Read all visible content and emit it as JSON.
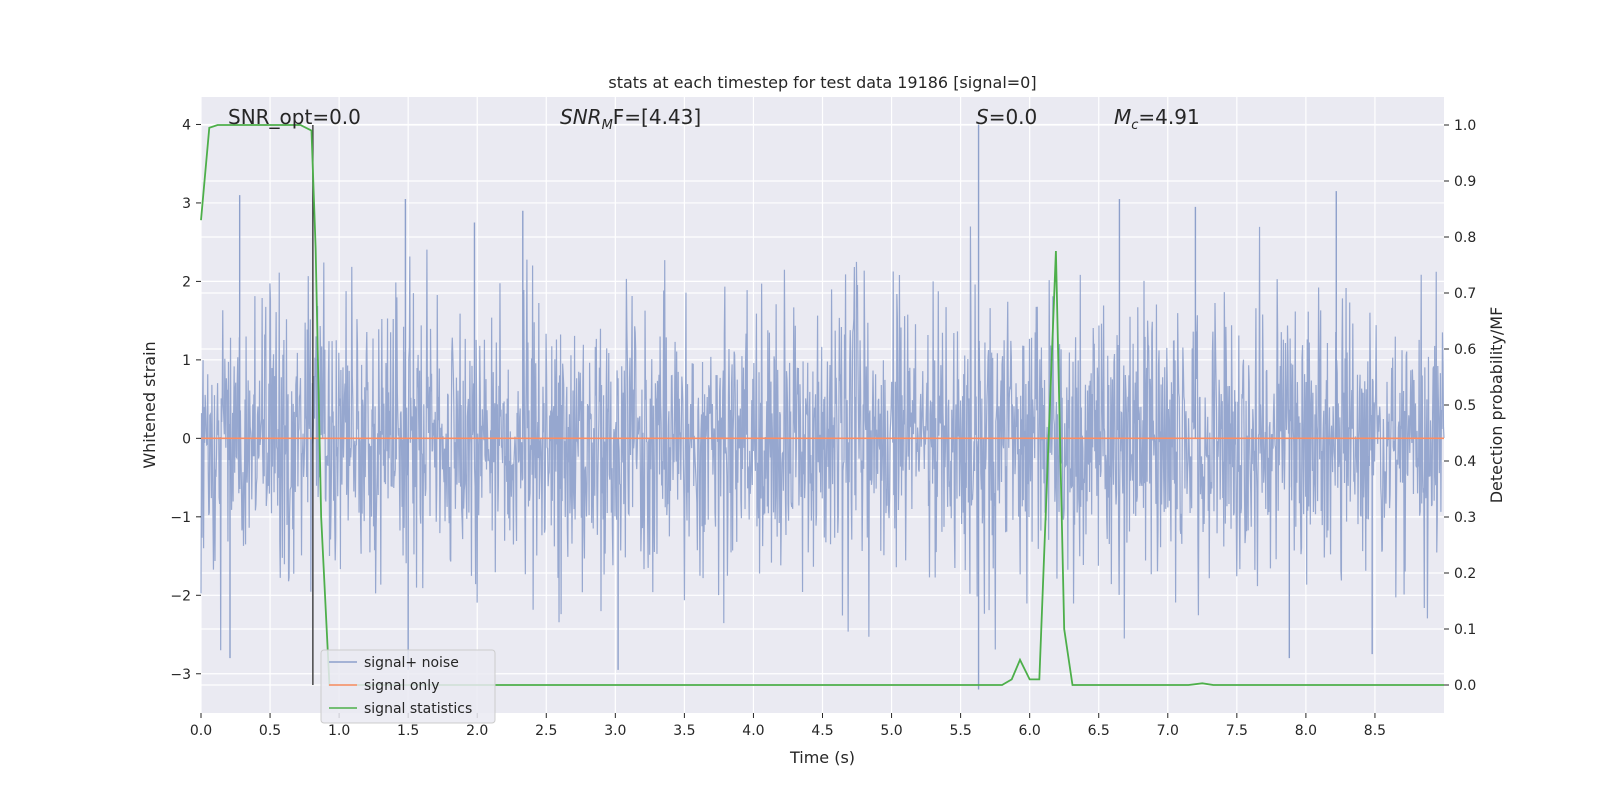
{
  "chart_data": {
    "type": "line",
    "title": "stats at each timestep for test data 19186 [signal=0]",
    "xlabel": "Time (s)",
    "ylabel_left": "Whitened strain",
    "ylabel_right": "Detection probability/MF",
    "xlim": [
      0.0,
      9.0
    ],
    "ylim_left": [
      -3.5,
      4.35
    ],
    "ylim_right": [
      -0.05,
      1.05
    ],
    "xticks": [
      "0.0",
      "0.5",
      "1.0",
      "1.5",
      "2.0",
      "2.5",
      "3.0",
      "3.5",
      "4.0",
      "4.5",
      "5.0",
      "5.5",
      "6.0",
      "6.5",
      "7.0",
      "7.5",
      "8.0",
      "8.5"
    ],
    "yticks_left": [
      "4",
      "3",
      "2",
      "1",
      "0",
      "−1",
      "−2",
      "−3"
    ],
    "yticks_right": [
      "1.0",
      "0.9",
      "0.8",
      "0.7",
      "0.6",
      "0.5",
      "0.4",
      "0.3",
      "0.2",
      "0.1",
      "0.0"
    ],
    "grid": true,
    "legend_position": "lower-left",
    "annotations": {
      "snr_opt": "SNR_opt=0.0",
      "snr_mf_base": "SNR",
      "snr_mf_sub": "M",
      "snr_mf_rest": "F=[4.43]",
      "s_base": "S",
      "s_rest": "=0.0",
      "mc_base": "M",
      "mc_sub": "c",
      "mc_rest": "=4.91"
    },
    "vline_x": 0.81,
    "series": [
      {
        "name": "signal+ noise",
        "axis": "left",
        "color": "#8da0cb",
        "description_level": "noise envelope about ±2 with spikes",
        "spikes": [
          [
            0.28,
            3.1
          ],
          [
            1.48,
            3.05
          ],
          [
            1.98,
            2.75
          ],
          [
            2.33,
            2.9
          ],
          [
            5.63,
            4.0
          ],
          [
            5.63,
            -3.2
          ],
          [
            6.65,
            3.05
          ],
          [
            7.2,
            2.95
          ],
          [
            8.22,
            3.15
          ],
          [
            1.5,
            -2.95
          ],
          [
            3.02,
            -2.95
          ],
          [
            7.88,
            -2.8
          ],
          [
            8.48,
            -2.75
          ],
          [
            0.21,
            -2.8
          ]
        ]
      },
      {
        "name": "signal only",
        "axis": "left",
        "color": "#fc8d62",
        "x": [
          0.0,
          9.0
        ],
        "y": [
          0.0,
          0.0
        ]
      },
      {
        "name": "signal statistics",
        "axis": "right",
        "color": "#4daf4a",
        "x": [
          0.0,
          0.06,
          0.12,
          0.5,
          0.72,
          0.8,
          0.83,
          0.87,
          0.93,
          5.8,
          5.87,
          5.93,
          6.0,
          6.07,
          6.12,
          6.19,
          6.25,
          6.31,
          7.15,
          7.25,
          7.33,
          9.0
        ],
        "y": [
          0.83,
          0.995,
          1.0,
          1.0,
          1.0,
          0.99,
          0.78,
          0.3,
          0.0,
          0.0,
          0.01,
          0.045,
          0.01,
          0.01,
          0.33,
          0.775,
          0.1,
          0.0,
          0.0,
          0.003,
          0.0,
          0.0
        ]
      }
    ]
  }
}
